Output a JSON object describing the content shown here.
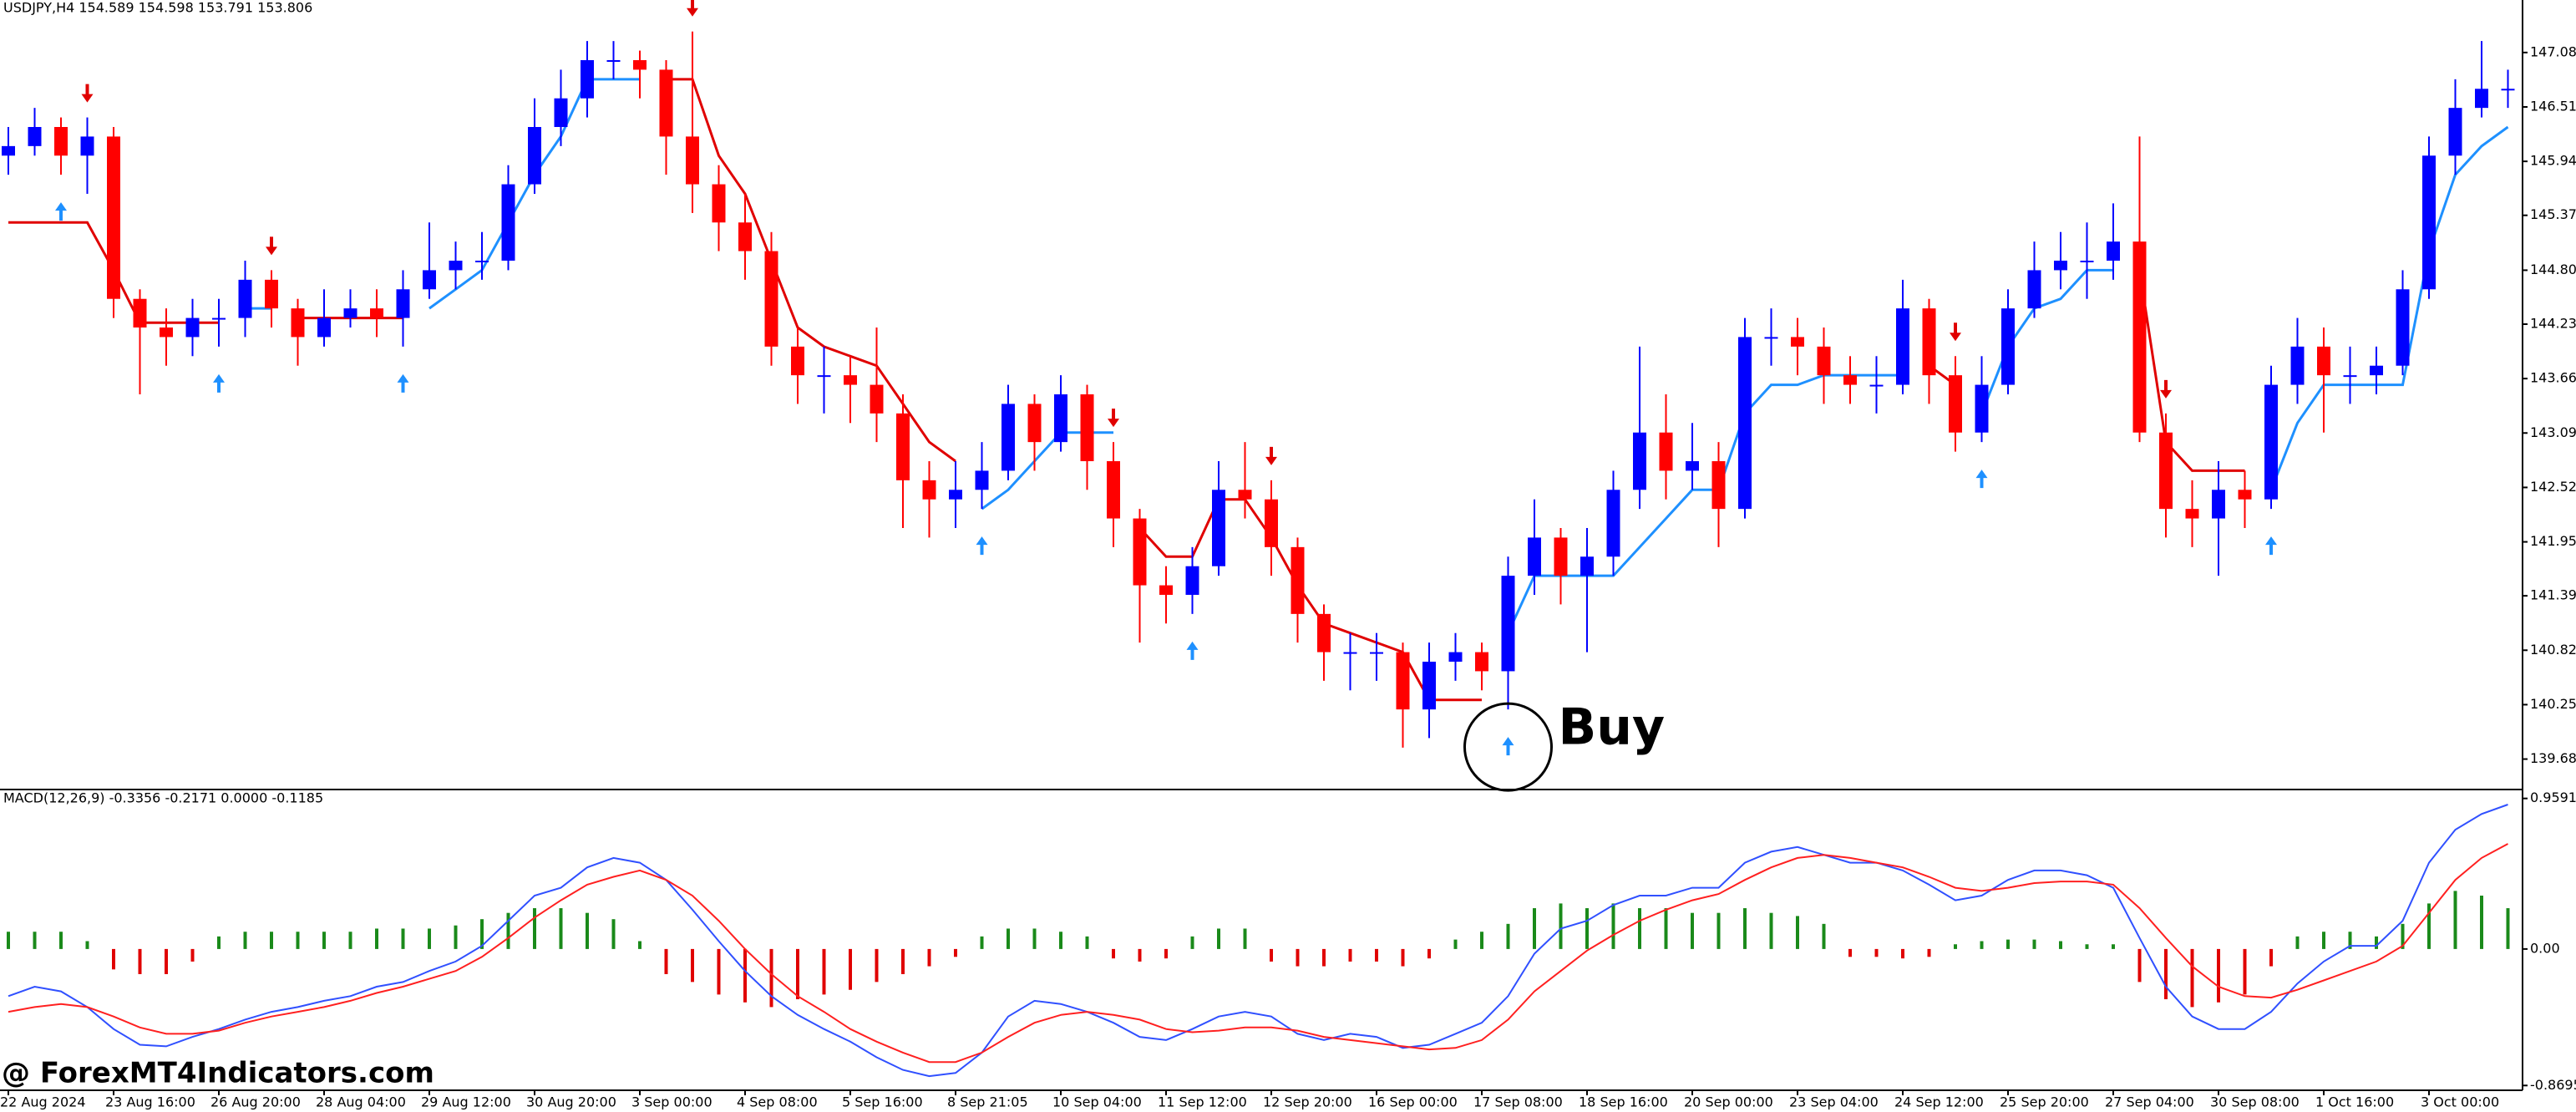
{
  "chart_data": [
    {
      "type": "candlestick",
      "title": "USDJPY,H4 154.589 154.598 153.791 153.806",
      "categories": [
        "22 Aug 2024",
        null,
        null,
        null,
        "23 Aug 16:00",
        null,
        null,
        null,
        "26 Aug 20:00",
        null,
        null,
        null,
        "28 Aug 04:00",
        null,
        null,
        null,
        "29 Aug 12:00",
        null,
        null,
        null,
        "30 Aug 20:00",
        null,
        null,
        null,
        "3 Sep 00:00",
        null,
        null,
        null,
        "4 Sep 08:00",
        null,
        null,
        null,
        "5 Sep 16:00",
        null,
        null,
        null,
        "8 Sep 21:05",
        null,
        null,
        null,
        "10 Sep 04:00",
        null,
        null,
        null,
        "11 Sep 12:00",
        null,
        null,
        null,
        "12 Sep 20:00",
        null,
        null,
        null,
        "16 Sep 00:00",
        null,
        null,
        null,
        "17 Sep 08:00",
        null,
        null,
        null,
        "18 Sep 16:00",
        null,
        null,
        null,
        "20 Sep 00:00",
        null,
        null,
        null,
        "23 Sep 04:00",
        null,
        null,
        null,
        "24 Sep 12:00",
        null,
        null,
        null,
        "25 Sep 20:00",
        null,
        null,
        null,
        "27 Sep 04:00",
        null,
        null,
        null,
        "30 Sep 08:00",
        null,
        null,
        null,
        "1 Oct 16:00",
        null,
        null,
        null,
        "3 Oct 00:00",
        null,
        null,
        null
      ],
      "open": [
        146.0,
        146.1,
        146.3,
        146.0,
        146.2,
        144.5,
        144.2,
        144.1,
        144.3,
        144.3,
        144.7,
        144.4,
        144.1,
        144.3,
        144.4,
        144.3,
        144.6,
        144.8,
        144.9,
        144.9,
        145.7,
        146.3,
        146.6,
        147.0,
        147.0,
        146.9,
        146.2,
        145.7,
        145.3,
        145.0,
        144.0,
        143.7,
        143.7,
        143.6,
        143.3,
        142.6,
        142.4,
        142.5,
        142.7,
        143.4,
        143.0,
        143.5,
        142.8,
        142.2,
        141.5,
        141.4,
        141.7,
        142.5,
        142.4,
        141.9,
        141.2,
        140.8,
        140.8,
        140.8,
        140.2,
        140.7,
        140.8,
        140.6,
        141.6,
        142.0,
        141.6,
        141.8,
        142.5,
        143.1,
        142.7,
        142.8,
        142.3,
        144.1,
        144.1,
        144.0,
        143.7,
        143.6,
        143.6,
        144.4,
        143.7,
        143.1,
        143.6,
        144.4,
        144.8,
        144.9,
        144.9,
        145.1,
        143.1,
        142.3,
        142.2,
        142.5,
        142.4,
        143.6,
        144.0,
        143.7,
        143.7,
        143.8,
        144.6,
        146.0,
        146.5,
        146.7
      ],
      "high": [
        146.3,
        146.5,
        146.4,
        146.4,
        146.3,
        144.6,
        144.4,
        144.5,
        144.5,
        144.9,
        144.8,
        144.5,
        144.6,
        144.6,
        144.6,
        144.8,
        145.3,
        145.1,
        145.2,
        145.9,
        146.6,
        146.9,
        147.2,
        147.2,
        147.1,
        147.0,
        147.3,
        145.9,
        145.6,
        145.2,
        144.2,
        144.0,
        143.9,
        144.2,
        143.5,
        142.8,
        142.8,
        143.0,
        143.6,
        143.5,
        143.7,
        143.6,
        143.0,
        142.3,
        141.7,
        141.9,
        142.8,
        143.0,
        142.6,
        142.0,
        141.3,
        141.0,
        141.0,
        140.9,
        140.9,
        141.0,
        140.9,
        141.8,
        142.4,
        142.1,
        142.1,
        142.7,
        144.0,
        143.5,
        143.2,
        143.0,
        144.3,
        144.4,
        144.3,
        144.2,
        143.9,
        143.9,
        144.7,
        144.5,
        143.9,
        143.9,
        144.6,
        145.1,
        145.2,
        145.3,
        145.5,
        146.2,
        143.3,
        142.6,
        142.8,
        142.7,
        143.8,
        144.3,
        144.2,
        144.0,
        144.0,
        144.8,
        146.2,
        146.8,
        147.2,
        146.9
      ],
      "low": [
        145.8,
        146.0,
        145.8,
        145.6,
        144.3,
        143.5,
        143.8,
        143.9,
        144.0,
        144.1,
        144.2,
        143.8,
        144.0,
        144.2,
        144.1,
        144.0,
        144.5,
        144.6,
        144.7,
        144.8,
        145.6,
        146.1,
        146.4,
        146.8,
        146.6,
        145.8,
        145.4,
        145.0,
        144.7,
        143.8,
        143.4,
        143.3,
        143.2,
        143.0,
        142.1,
        142.0,
        142.1,
        142.3,
        142.6,
        142.7,
        142.9,
        142.5,
        141.9,
        140.9,
        141.1,
        141.2,
        141.6,
        142.2,
        141.6,
        140.9,
        140.5,
        140.4,
        140.5,
        139.8,
        139.9,
        140.5,
        140.4,
        140.2,
        141.4,
        141.3,
        140.8,
        141.6,
        142.3,
        142.4,
        142.5,
        141.9,
        142.2,
        143.8,
        143.7,
        143.4,
        143.4,
        143.3,
        143.5,
        143.4,
        142.9,
        143.0,
        143.5,
        144.3,
        144.6,
        144.5,
        144.7,
        143.0,
        142.0,
        141.9,
        141.6,
        142.1,
        142.3,
        143.4,
        143.1,
        143.4,
        143.5,
        143.7,
        144.5,
        145.8,
        146.4,
        146.5
      ],
      "close": [
        146.1,
        146.3,
        146.0,
        146.2,
        144.5,
        144.2,
        144.1,
        144.3,
        144.3,
        144.7,
        144.4,
        144.1,
        144.3,
        144.4,
        144.3,
        144.6,
        144.8,
        144.9,
        144.9,
        145.7,
        146.3,
        146.6,
        147.0,
        147.0,
        146.9,
        146.2,
        145.7,
        145.3,
        145.0,
        144.0,
        143.7,
        143.7,
        143.6,
        143.3,
        142.6,
        142.4,
        142.5,
        142.7,
        143.4,
        143.0,
        143.5,
        142.8,
        142.2,
        141.5,
        141.4,
        141.7,
        142.5,
        142.4,
        141.9,
        141.2,
        140.8,
        140.8,
        140.8,
        140.2,
        140.7,
        140.8,
        140.6,
        141.6,
        142.0,
        141.6,
        141.8,
        142.5,
        143.1,
        142.7,
        142.8,
        142.3,
        144.1,
        144.1,
        144.0,
        143.7,
        143.6,
        143.6,
        144.4,
        143.7,
        143.1,
        143.6,
        144.4,
        144.8,
        144.9,
        144.9,
        145.1,
        143.1,
        142.3,
        142.2,
        142.5,
        142.4,
        143.6,
        144.0,
        143.7,
        143.7,
        143.8,
        144.6,
        146.0,
        146.5,
        146.7,
        146.7
      ],
      "up_color": "#0000ff",
      "down_color": "#ff0000",
      "trail_up": {
        "color": "#1e90ff",
        "values": [
          null,
          null,
          null,
          null,
          null,
          null,
          null,
          null,
          null,
          144.4,
          144.4,
          null,
          null,
          null,
          null,
          null,
          144.4,
          144.6,
          144.8,
          145.3,
          145.8,
          146.2,
          146.8,
          146.8,
          146.8,
          null,
          null,
          null,
          null,
          null,
          null,
          null,
          null,
          null,
          null,
          null,
          null,
          142.3,
          142.5,
          142.8,
          143.1,
          143.1,
          143.1,
          null,
          null,
          null,
          null,
          null,
          null,
          null,
          null,
          null,
          null,
          null,
          null,
          null,
          null,
          141.0,
          141.6,
          141.6,
          141.6,
          141.6,
          141.9,
          142.2,
          142.5,
          142.5,
          143.3,
          143.6,
          143.6,
          143.7,
          143.7,
          143.7,
          143.7,
          null,
          null,
          143.3,
          144.0,
          144.4,
          144.5,
          144.8,
          144.8,
          null,
          null,
          null,
          null,
          null,
          142.5,
          143.2,
          143.6,
          143.6,
          143.6,
          143.6,
          145.0,
          145.8,
          146.1,
          146.3
        ]
      },
      "trail_down": {
        "color": "#e00000",
        "values": [
          145.3,
          145.3,
          145.3,
          145.3,
          144.8,
          144.25,
          144.25,
          144.25,
          144.25,
          null,
          null,
          144.3,
          144.3,
          144.3,
          144.3,
          144.3,
          null,
          null,
          null,
          null,
          null,
          null,
          null,
          null,
          null,
          146.8,
          146.8,
          146.0,
          145.6,
          144.9,
          144.2,
          144.0,
          143.9,
          143.8,
          143.4,
          143.0,
          142.8,
          null,
          null,
          null,
          null,
          null,
          null,
          142.1,
          141.8,
          141.8,
          142.4,
          142.4,
          142.0,
          141.5,
          141.1,
          141.0,
          140.9,
          140.8,
          140.3,
          140.3,
          140.3,
          null,
          null,
          null,
          null,
          null,
          null,
          null,
          null,
          null,
          null,
          null,
          null,
          null,
          null,
          null,
          null,
          143.8,
          143.6,
          null,
          null,
          null,
          null,
          null,
          null,
          144.8,
          143.0,
          142.7,
          142.7,
          142.7,
          null,
          null,
          null,
          null,
          null,
          null,
          null,
          null,
          null,
          null
        ]
      },
      "signals": {
        "buy": {
          "color": "#1e90ff",
          "bars": [
            2,
            8,
            15,
            37,
            45,
            57,
            75,
            86
          ]
        },
        "sell": {
          "color": "#e00000",
          "bars": [
            3,
            10,
            26,
            42,
            48,
            74,
            82
          ]
        }
      },
      "annotation": {
        "text": "Buy",
        "bar": 57
      },
      "ylim": [
        139.37,
        147.63
      ],
      "yticks": [
        {
          "value": 147.08,
          "label": "147.080"
        },
        {
          "value": 146.51,
          "label": "146.510"
        },
        {
          "value": 145.94,
          "label": "145.940"
        },
        145.375,
        {
          "value": 144.8,
          "label": "144.800"
        },
        144.235,
        143.665,
        143.095,
        142.525,
        141.955,
        {
          "value": 141.39,
          "label": "141.390"
        },
        {
          "value": 140.82,
          "label": "140.820"
        },
        {
          "value": 140.25,
          "label": "140.250"
        },
        {
          "value": 139.68,
          "label": "139.680"
        }
      ]
    },
    {
      "type": "macd",
      "title": "MACD(12,26,9) -0.3356 -0.2171 0.0000 -0.1185",
      "histogram": {
        "up_color": "#1a8a1a",
        "down_color": "#e00000",
        "values": [
          0.11,
          0.11,
          0.11,
          0.05,
          -0.13,
          -0.16,
          -0.16,
          -0.08,
          0.08,
          0.11,
          0.11,
          0.11,
          0.11,
          0.11,
          0.13,
          0.13,
          0.13,
          0.15,
          0.19,
          0.23,
          0.26,
          0.26,
          0.23,
          0.19,
          0.05,
          -0.16,
          -0.21,
          -0.29,
          -0.34,
          -0.37,
          -0.32,
          -0.29,
          -0.26,
          -0.21,
          -0.16,
          -0.11,
          -0.05,
          0.08,
          0.13,
          0.13,
          0.11,
          0.08,
          -0.06,
          -0.08,
          -0.06,
          0.08,
          0.13,
          0.13,
          -0.08,
          -0.11,
          -0.11,
          -0.08,
          -0.08,
          -0.11,
          -0.06,
          0.06,
          0.11,
          0.16,
          0.26,
          0.29,
          0.26,
          0.29,
          0.26,
          0.26,
          0.23,
          0.23,
          0.26,
          0.23,
          0.21,
          0.16,
          -0.05,
          -0.05,
          -0.06,
          -0.05,
          0.03,
          0.05,
          0.06,
          0.06,
          0.05,
          0.03,
          0.03,
          -0.21,
          -0.32,
          -0.37,
          -0.34,
          -0.29,
          -0.11,
          0.08,
          0.11,
          0.11,
          0.08,
          0.16,
          0.29,
          0.37,
          0.34,
          0.26
        ]
      },
      "series": [
        {
          "color": "#3050ff",
          "values": [
            -0.3,
            -0.24,
            -0.27,
            -0.37,
            -0.51,
            -0.61,
            -0.62,
            -0.56,
            -0.51,
            -0.45,
            -0.4,
            -0.37,
            -0.33,
            -0.3,
            -0.24,
            -0.21,
            -0.14,
            -0.08,
            0.02,
            0.18,
            0.34,
            0.39,
            0.52,
            0.58,
            0.55,
            0.44,
            0.25,
            0.05,
            -0.14,
            -0.3,
            -0.42,
            -0.51,
            -0.59,
            -0.69,
            -0.77,
            -0.81,
            -0.79,
            -0.66,
            -0.43,
            -0.33,
            -0.35,
            -0.4,
            -0.47,
            -0.56,
            -0.58,
            -0.51,
            -0.43,
            -0.4,
            -0.43,
            -0.54,
            -0.58,
            -0.54,
            -0.56,
            -0.63,
            -0.61,
            -0.54,
            -0.47,
            -0.3,
            -0.03,
            0.13,
            0.18,
            0.28,
            0.34,
            0.34,
            0.39,
            0.39,
            0.55,
            0.62,
            0.65,
            0.6,
            0.55,
            0.55,
            0.5,
            0.41,
            0.31,
            0.34,
            0.44,
            0.5,
            0.5,
            0.47,
            0.39,
            0.07,
            -0.24,
            -0.43,
            -0.51,
            -0.51,
            -0.4,
            -0.22,
            -0.08,
            0.02,
            0.02,
            0.18,
            0.55,
            0.76,
            0.86,
            0.92
          ]
        },
        {
          "color": "#ff2020",
          "values": [
            -0.4,
            -0.37,
            -0.35,
            -0.37,
            -0.43,
            -0.5,
            -0.54,
            -0.54,
            -0.52,
            -0.47,
            -0.43,
            -0.4,
            -0.37,
            -0.33,
            -0.28,
            -0.24,
            -0.19,
            -0.14,
            -0.05,
            0.07,
            0.2,
            0.31,
            0.41,
            0.46,
            0.5,
            0.44,
            0.34,
            0.18,
            0,
            -0.16,
            -0.3,
            -0.4,
            -0.51,
            -0.59,
            -0.66,
            -0.72,
            -0.72,
            -0.66,
            -0.56,
            -0.47,
            -0.42,
            -0.4,
            -0.42,
            -0.45,
            -0.51,
            -0.53,
            -0.52,
            -0.5,
            -0.5,
            -0.52,
            -0.56,
            -0.58,
            -0.6,
            -0.62,
            -0.64,
            -0.63,
            -0.58,
            -0.45,
            -0.27,
            -0.14,
            -0.01,
            0.09,
            0.18,
            0.25,
            0.31,
            0.35,
            0.44,
            0.52,
            0.58,
            0.6,
            0.58,
            0.55,
            0.52,
            0.46,
            0.39,
            0.37,
            0.39,
            0.42,
            0.43,
            0.43,
            0.41,
            0.26,
            0.07,
            -0.11,
            -0.24,
            -0.3,
            -0.31,
            -0.26,
            -0.2,
            -0.14,
            -0.08,
            0.02,
            0.23,
            0.44,
            0.58,
            0.67
          ]
        }
      ],
      "ylim": [
        -0.9,
        1.0
      ],
      "yticks": [
        0.9591,
        {
          "value": 0,
          "label": "0.00"
        },
        -0.8695
      ]
    }
  ],
  "watermark": "@ ForexMT4Indicators.com"
}
